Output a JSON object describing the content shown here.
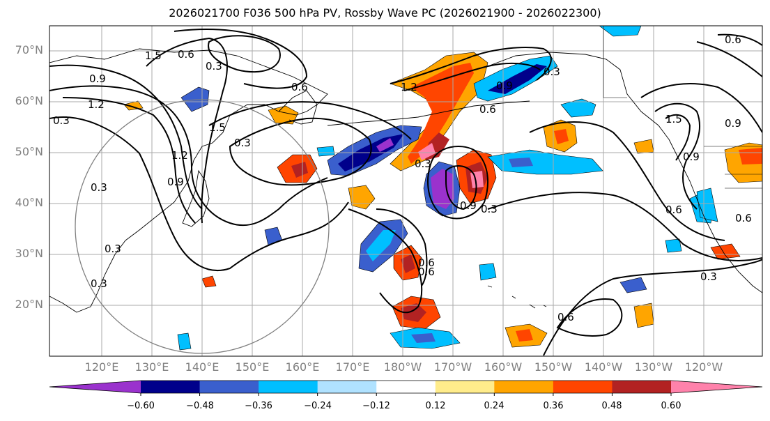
{
  "title": "2026021700 F036 500 hPa PV, Rossby Wave PC (2026021900 - 2026022300)",
  "lat_labels": [
    "70°N",
    "60°N",
    "50°N",
    "40°N",
    "30°N",
    "20°N"
  ],
  "lon_labels": [
    "120°E",
    "130°E",
    "140°E",
    "150°E",
    "160°E",
    "170°E",
    "180°W",
    "170°W",
    "160°W",
    "150°W",
    "140°W",
    "130°W",
    "120°W"
  ],
  "colorbar": {
    "colors": [
      "#9a32cd",
      "#00008b",
      "#3a5fcd",
      "#00bfff",
      "#b0e2ff",
      "#ffffff",
      "#ffec8b",
      "#ffa500",
      "#ff4500",
      "#b22222",
      "#ff82ab"
    ],
    "ticks": [
      "−0.60",
      "−0.48",
      "−0.36",
      "−0.24",
      "−0.12",
      "0.12",
      "0.24",
      "0.36",
      "0.48",
      "0.60"
    ]
  },
  "contour_labels": [
    "0.3",
    "0.6",
    "0.9",
    "1.2",
    "1.5",
    "0.3",
    "0.6",
    "0.9",
    "1.2",
    "1.5",
    "0.3",
    "0.9",
    "0.6",
    "0.3",
    "0.9",
    "0.3",
    "0.6",
    "0.6",
    "0.9",
    "0.3",
    "0.3",
    "0.6",
    "0.9",
    "0.3",
    "1.2",
    "1.5",
    "0.6",
    "0.3",
    "0.6",
    "0.3",
    "0.6"
  ]
}
